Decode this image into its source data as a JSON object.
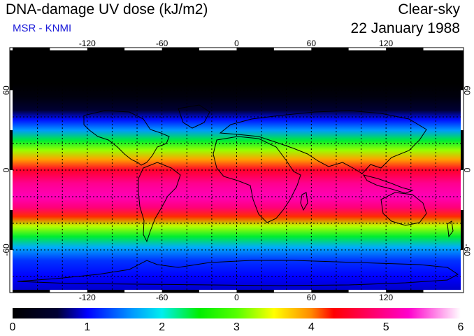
{
  "header": {
    "title": "DNA-damage UV dose (kJ/m2)",
    "source": "MSR - KNMI",
    "mode": "Clear-sky",
    "date": "22 January 1988"
  },
  "map": {
    "projection": "equirectangular",
    "lon_range": [
      -180,
      180
    ],
    "lat_range": [
      -90,
      90
    ],
    "lon_ticks": [
      "-120",
      "-60",
      "0",
      "60",
      "120"
    ],
    "lon_tick_values": [
      -120,
      -60,
      0,
      60,
      120
    ],
    "lat_ticks": [
      "60",
      "0",
      "-60"
    ],
    "lat_tick_values": [
      60,
      0,
      -60
    ],
    "grid_style": "dotted black graticule every 20 degrees"
  },
  "colorbar": {
    "min": 0,
    "max": 6,
    "labels": [
      "0",
      "1",
      "2",
      "3",
      "4",
      "5",
      "6"
    ],
    "label_values": [
      0,
      1,
      2,
      3,
      4,
      5,
      6
    ],
    "colors": [
      {
        "v": 0.0,
        "c": "#000000"
      },
      {
        "v": 0.6,
        "c": "#000033"
      },
      {
        "v": 1.0,
        "c": "#0000ff"
      },
      {
        "v": 1.6,
        "c": "#0099ff"
      },
      {
        "v": 2.0,
        "c": "#00eeee"
      },
      {
        "v": 2.5,
        "c": "#00ee00"
      },
      {
        "v": 3.0,
        "c": "#55ff00"
      },
      {
        "v": 3.5,
        "c": "#ffff00"
      },
      {
        "v": 4.0,
        "c": "#ff8800"
      },
      {
        "v": 4.3,
        "c": "#ff0000"
      },
      {
        "v": 4.8,
        "c": "#ff0066"
      },
      {
        "v": 5.3,
        "c": "#ff00cc"
      },
      {
        "v": 6.0,
        "c": "#ffffff"
      }
    ]
  },
  "dose_by_latitude": [
    {
      "lat": 90,
      "dose": 0.0
    },
    {
      "lat": 65,
      "dose": 0.0
    },
    {
      "lat": 55,
      "dose": 0.15
    },
    {
      "lat": 45,
      "dose": 0.6
    },
    {
      "lat": 38,
      "dose": 1.05
    },
    {
      "lat": 30,
      "dose": 1.6
    },
    {
      "lat": 22,
      "dose": 2.4
    },
    {
      "lat": 15,
      "dose": 3.2
    },
    {
      "lat": 8,
      "dose": 3.9
    },
    {
      "lat": 0,
      "dose": 4.5
    },
    {
      "lat": -10,
      "dose": 5.0
    },
    {
      "lat": -20,
      "dose": 5.2
    },
    {
      "lat": -28,
      "dose": 4.9
    },
    {
      "lat": -35,
      "dose": 4.2
    },
    {
      "lat": -42,
      "dose": 3.3
    },
    {
      "lat": -50,
      "dose": 2.4
    },
    {
      "lat": -58,
      "dose": 1.7
    },
    {
      "lat": -68,
      "dose": 1.2
    },
    {
      "lat": -80,
      "dose": 1.0
    },
    {
      "lat": -90,
      "dose": 0.9
    }
  ]
}
